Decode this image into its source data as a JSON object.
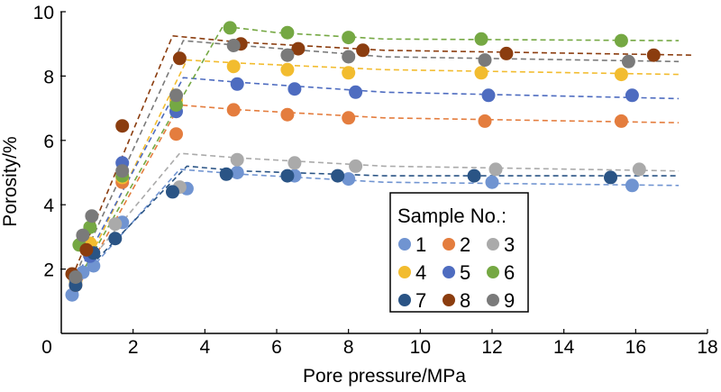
{
  "chart_data": {
    "type": "scatter",
    "title": "",
    "xlabel": "Pore pressure/MPa",
    "ylabel": "Porosity/%",
    "xlim": [
      0,
      18
    ],
    "ylim": [
      0,
      10
    ],
    "xticks": [
      "0",
      "2",
      "4",
      "6",
      "8",
      "10",
      "12",
      "14",
      "16",
      "18"
    ],
    "yticks": [
      "2",
      "4",
      "6",
      "8",
      "10"
    ],
    "grid": false,
    "legend": {
      "title": "Sample No.:",
      "placement": "bottom-center",
      "columns": 3
    },
    "series": [
      {
        "name": "1",
        "color": "#7094D1",
        "points": [
          [
            0.3,
            1.2
          ],
          [
            0.6,
            1.9
          ],
          [
            0.9,
            2.1
          ],
          [
            1.7,
            3.45
          ],
          [
            3.5,
            4.5
          ],
          [
            4.9,
            5.0
          ],
          [
            6.5,
            4.9
          ],
          [
            8.0,
            4.8
          ],
          [
            12.0,
            4.7
          ],
          [
            15.9,
            4.6
          ]
        ],
        "fit": [
          [
            0.3,
            1.35
          ],
          [
            3.3,
            5.1
          ],
          [
            5.0,
            4.95
          ],
          [
            9.0,
            4.7
          ],
          [
            17.2,
            4.6
          ]
        ]
      },
      {
        "name": "2",
        "color": "#E47D3E",
        "points": [
          [
            0.4,
            1.5
          ],
          [
            0.8,
            2.6
          ],
          [
            1.7,
            4.7
          ],
          [
            3.2,
            6.2
          ],
          [
            4.8,
            6.95
          ],
          [
            6.3,
            6.8
          ],
          [
            8.0,
            6.7
          ],
          [
            11.8,
            6.6
          ],
          [
            15.6,
            6.6
          ]
        ],
        "fit": [
          [
            0.4,
            1.3
          ],
          [
            3.3,
            7.1
          ],
          [
            5.0,
            6.95
          ],
          [
            9.0,
            6.7
          ],
          [
            17.2,
            6.55
          ]
        ]
      },
      {
        "name": "3",
        "color": "#AAAAAA",
        "points": [
          [
            0.4,
            1.6
          ],
          [
            1.5,
            3.4
          ],
          [
            3.3,
            4.55
          ],
          [
            4.9,
            5.4
          ],
          [
            6.5,
            5.3
          ],
          [
            8.2,
            5.2
          ],
          [
            12.1,
            5.1
          ],
          [
            16.1,
            5.1
          ]
        ],
        "fit": [
          [
            0.3,
            1.6
          ],
          [
            3.3,
            5.6
          ],
          [
            5.0,
            5.45
          ],
          [
            9.0,
            5.2
          ],
          [
            17.2,
            5.05
          ]
        ]
      },
      {
        "name": "4",
        "color": "#F2BC2F",
        "points": [
          [
            0.4,
            1.65
          ],
          [
            0.8,
            2.8
          ],
          [
            1.7,
            4.85
          ],
          [
            3.2,
            7.25
          ],
          [
            4.8,
            8.3
          ],
          [
            6.3,
            8.2
          ],
          [
            8.0,
            8.1
          ],
          [
            11.7,
            8.1
          ],
          [
            15.6,
            8.05
          ]
        ],
        "fit": [
          [
            0.4,
            1.45
          ],
          [
            3.5,
            8.5
          ],
          [
            5.0,
            8.4
          ],
          [
            9.0,
            8.2
          ],
          [
            17.2,
            8.05
          ]
        ]
      },
      {
        "name": "5",
        "color": "#4E6CC0",
        "points": [
          [
            0.4,
            1.7
          ],
          [
            0.8,
            2.4
          ],
          [
            1.7,
            5.3
          ],
          [
            3.2,
            6.9
          ],
          [
            4.9,
            7.75
          ],
          [
            6.5,
            7.6
          ],
          [
            8.2,
            7.5
          ],
          [
            11.9,
            7.4
          ],
          [
            15.9,
            7.4
          ]
        ],
        "fit": [
          [
            0.3,
            1.5
          ],
          [
            3.4,
            7.95
          ],
          [
            5.0,
            7.8
          ],
          [
            9.0,
            7.5
          ],
          [
            17.2,
            7.3
          ]
        ]
      },
      {
        "name": "6",
        "color": "#75A843",
        "points": [
          [
            0.5,
            2.75
          ],
          [
            0.8,
            3.3
          ],
          [
            1.7,
            4.9
          ],
          [
            3.2,
            7.1
          ],
          [
            4.7,
            9.5
          ],
          [
            6.3,
            9.35
          ],
          [
            8.0,
            9.2
          ],
          [
            11.7,
            9.15
          ],
          [
            15.6,
            9.1
          ]
        ],
        "fit": [
          [
            0.3,
            1.35
          ],
          [
            4.5,
            9.55
          ],
          [
            6.0,
            9.35
          ],
          [
            9.0,
            9.15
          ],
          [
            17.2,
            9.1
          ]
        ]
      },
      {
        "name": "7",
        "color": "#2A5485",
        "points": [
          [
            0.4,
            1.5
          ],
          [
            0.9,
            2.5
          ],
          [
            1.5,
            2.95
          ],
          [
            3.1,
            4.4
          ],
          [
            4.6,
            4.95
          ],
          [
            6.3,
            4.9
          ],
          [
            7.7,
            4.9
          ],
          [
            11.5,
            4.9
          ],
          [
            15.3,
            4.85
          ]
        ],
        "fit": [
          [
            0.3,
            1.5
          ],
          [
            3.5,
            5.2
          ],
          [
            5.0,
            5.05
          ],
          [
            9.0,
            4.9
          ],
          [
            17.2,
            4.9
          ]
        ]
      },
      {
        "name": "8",
        "color": "#8B3D0F",
        "points": [
          [
            0.3,
            1.85
          ],
          [
            0.7,
            2.6
          ],
          [
            1.7,
            6.45
          ],
          [
            3.3,
            8.55
          ],
          [
            5.0,
            9.0
          ],
          [
            6.6,
            8.85
          ],
          [
            8.4,
            8.8
          ],
          [
            12.4,
            8.7
          ],
          [
            16.5,
            8.65
          ]
        ],
        "fit": [
          [
            0.3,
            1.75
          ],
          [
            3.1,
            9.25
          ],
          [
            5.0,
            9.05
          ],
          [
            9.0,
            8.8
          ],
          [
            17.6,
            8.65
          ]
        ]
      },
      {
        "name": "9",
        "color": "#7A7A7A",
        "points": [
          [
            0.4,
            1.75
          ],
          [
            0.6,
            3.05
          ],
          [
            0.85,
            3.65
          ],
          [
            1.7,
            5.05
          ],
          [
            3.2,
            7.4
          ],
          [
            4.8,
            8.95
          ],
          [
            6.3,
            8.65
          ],
          [
            8.0,
            8.6
          ],
          [
            11.8,
            8.5
          ],
          [
            15.8,
            8.45
          ]
        ],
        "fit": [
          [
            0.3,
            1.6
          ],
          [
            3.4,
            9.1
          ],
          [
            5.0,
            8.95
          ],
          [
            9.0,
            8.6
          ],
          [
            17.2,
            8.45
          ]
        ]
      }
    ]
  }
}
